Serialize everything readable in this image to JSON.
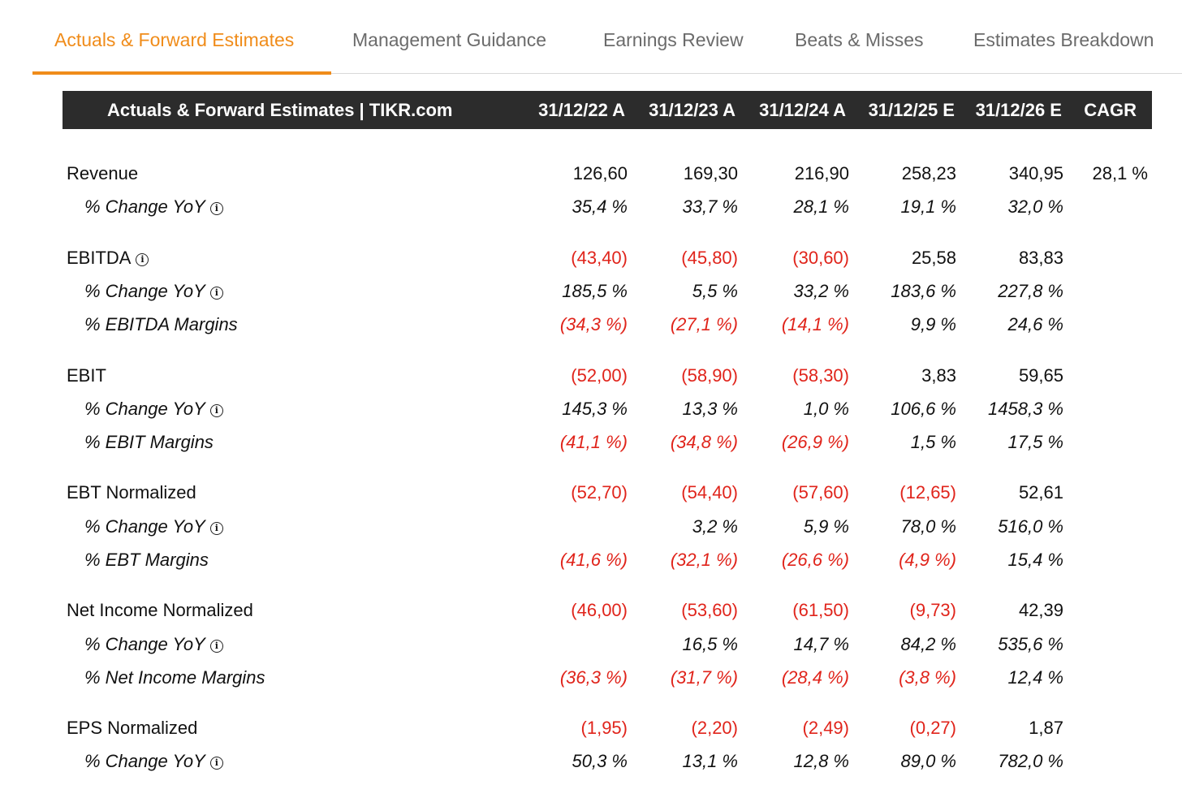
{
  "tabs": [
    {
      "label": "Actuals & Forward Estimates",
      "active": true
    },
    {
      "label": "Management Guidance",
      "active": false
    },
    {
      "label": "Earnings Review",
      "active": false
    },
    {
      "label": "Beats & Misses",
      "active": false
    },
    {
      "label": "Estimates Breakdown",
      "active": false
    }
  ],
  "colors": {
    "accent": "#f08c1a",
    "negative": "#e0241b",
    "header_bg": "#2c2c2c"
  },
  "table": {
    "title": "Actuals & Forward Estimates | TIKR.com",
    "columns": [
      "31/12/22 A",
      "31/12/23 A",
      "31/12/24 A",
      "31/12/25 E",
      "31/12/26 E",
      "CAGR"
    ],
    "rows": [
      {
        "label": "Revenue",
        "values": [
          "126,60",
          "169,30",
          "216,90",
          "258,23",
          "340,95",
          "28,1 %"
        ]
      },
      {
        "label": "% Change YoY",
        "values": [
          "35,4 %",
          "33,7 %",
          "28,1 %",
          "19,1 %",
          "32,0 %",
          ""
        ]
      },
      {
        "label": "EBITDA",
        "values": [
          "(43,40)",
          "(45,80)",
          "(30,60)",
          "25,58",
          "83,83",
          ""
        ]
      },
      {
        "label": "% Change YoY",
        "values": [
          "185,5 %",
          "5,5 %",
          "33,2 %",
          "183,6 %",
          "227,8 %",
          ""
        ]
      },
      {
        "label": "% EBITDA Margins",
        "values": [
          "(34,3 %)",
          "(27,1 %)",
          "(14,1 %)",
          "9,9 %",
          "24,6 %",
          ""
        ]
      },
      {
        "label": "EBIT",
        "values": [
          "(52,00)",
          "(58,90)",
          "(58,30)",
          "3,83",
          "59,65",
          ""
        ]
      },
      {
        "label": "% Change YoY",
        "values": [
          "145,3 %",
          "13,3 %",
          "1,0 %",
          "106,6 %",
          "1458,3 %",
          ""
        ]
      },
      {
        "label": "% EBIT Margins",
        "values": [
          "(41,1 %)",
          "(34,8 %)",
          "(26,9 %)",
          "1,5 %",
          "17,5 %",
          ""
        ]
      },
      {
        "label": "EBT Normalized",
        "values": [
          "(52,70)",
          "(54,40)",
          "(57,60)",
          "(12,65)",
          "52,61",
          ""
        ]
      },
      {
        "label": "% Change YoY",
        "values": [
          "",
          "3,2 %",
          "5,9 %",
          "78,0 %",
          "516,0 %",
          ""
        ]
      },
      {
        "label": "% EBT Margins",
        "values": [
          "(41,6 %)",
          "(32,1 %)",
          "(26,6 %)",
          "(4,9 %)",
          "15,4 %",
          ""
        ]
      },
      {
        "label": "Net Income Normalized",
        "values": [
          "(46,00)",
          "(53,60)",
          "(61,50)",
          "(9,73)",
          "42,39",
          ""
        ]
      },
      {
        "label": "% Change YoY",
        "values": [
          "",
          "16,5 %",
          "14,7 %",
          "84,2 %",
          "535,6 %",
          ""
        ]
      },
      {
        "label": "% Net Income Margins",
        "values": [
          "(36,3 %)",
          "(31,7 %)",
          "(28,4 %)",
          "(3,8 %)",
          "12,4 %",
          ""
        ]
      },
      {
        "label": "EPS Normalized",
        "values": [
          "(1,95)",
          "(2,20)",
          "(2,49)",
          "(0,27)",
          "1,87",
          ""
        ]
      },
      {
        "label": "% Change YoY",
        "values": [
          "50,3 %",
          "13,1 %",
          "12,8 %",
          "89,0 %",
          "782,0 %",
          ""
        ]
      }
    ]
  }
}
